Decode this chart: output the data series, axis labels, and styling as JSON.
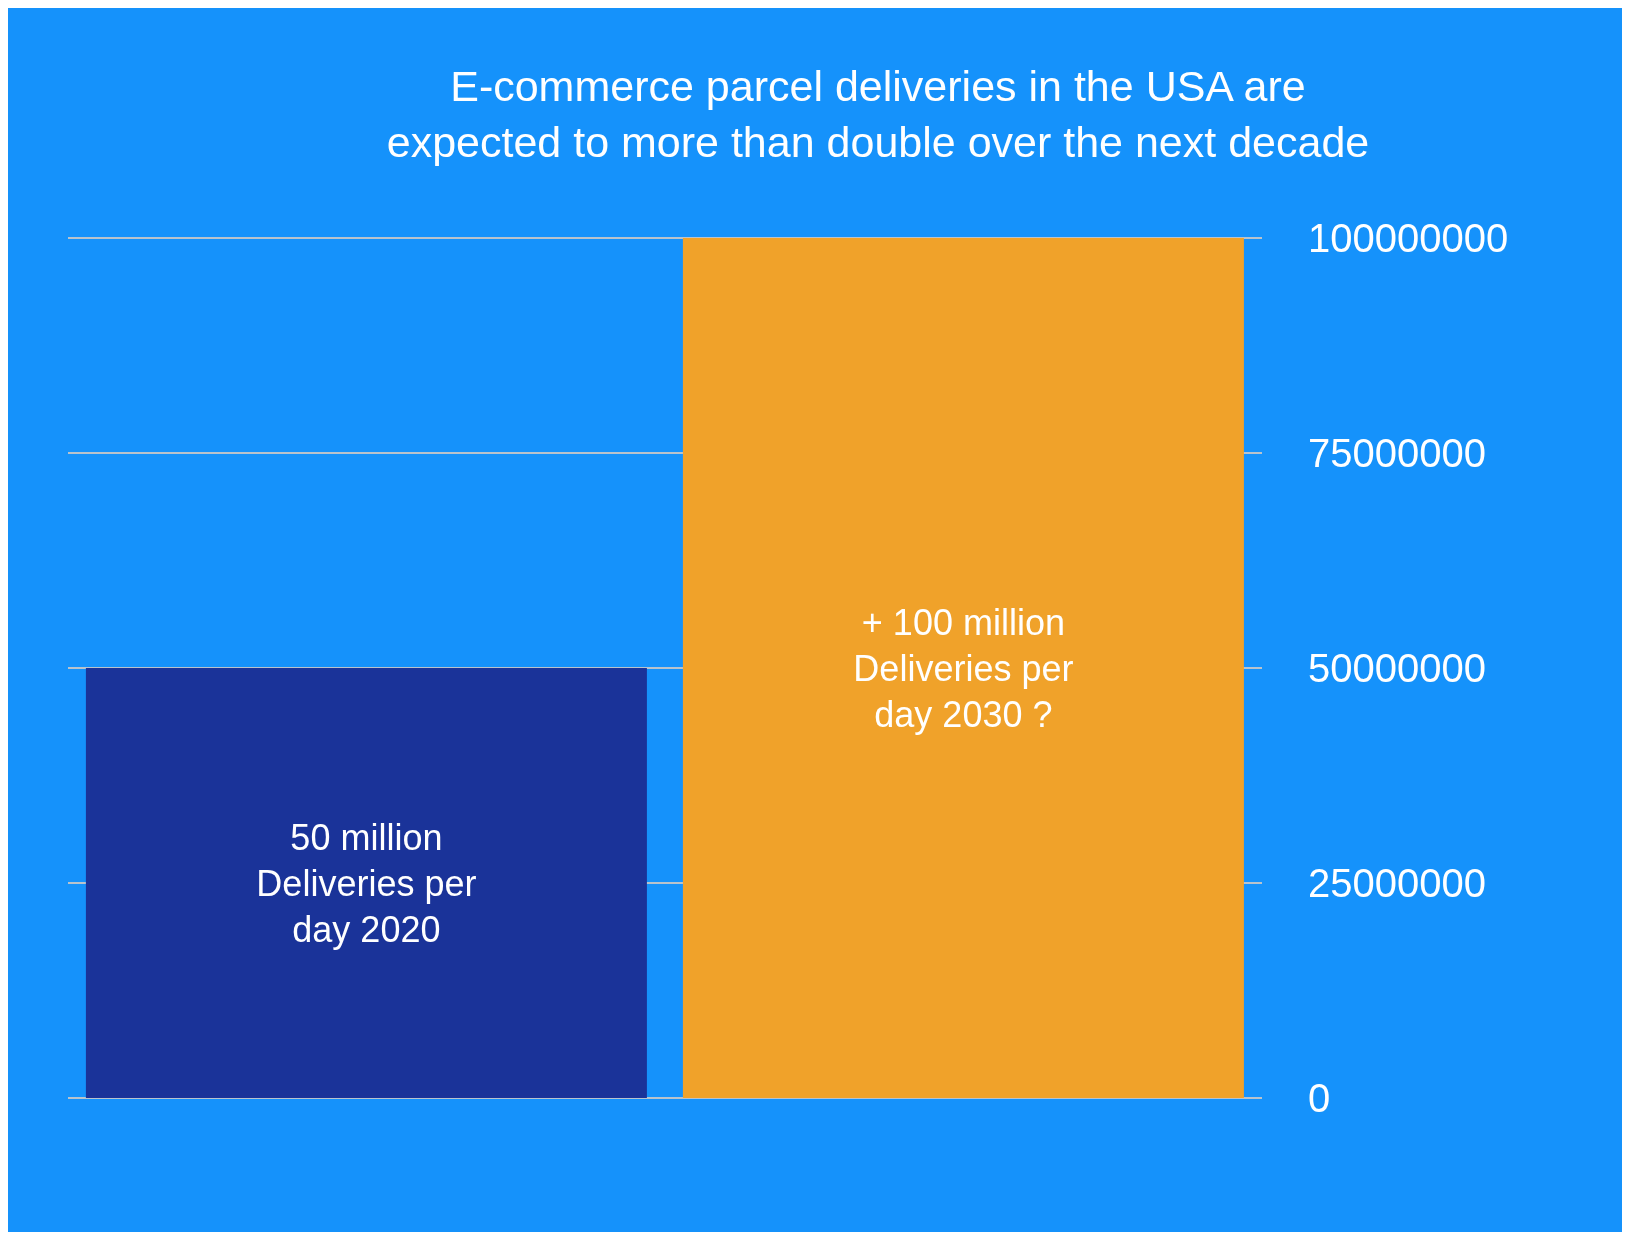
{
  "chart_data": {
    "type": "bar",
    "title": "E-commerce parcel deliveries in the USA are expected to more than double over the next decade",
    "categories": [
      null,
      null
    ],
    "values": [
      50000000,
      100000000
    ],
    "colors": [
      "#1a3399",
      "#f0a22a"
    ],
    "value_labels": [
      "50 million Deliveries per day 2020",
      "+ 100 million Deliveries per day 2030 ?"
    ],
    "ylim": [
      0,
      100000000
    ],
    "yticks": [
      0,
      25000000,
      50000000,
      75000000,
      100000000
    ],
    "grid": "y",
    "tick_labels": "y"
  }
}
